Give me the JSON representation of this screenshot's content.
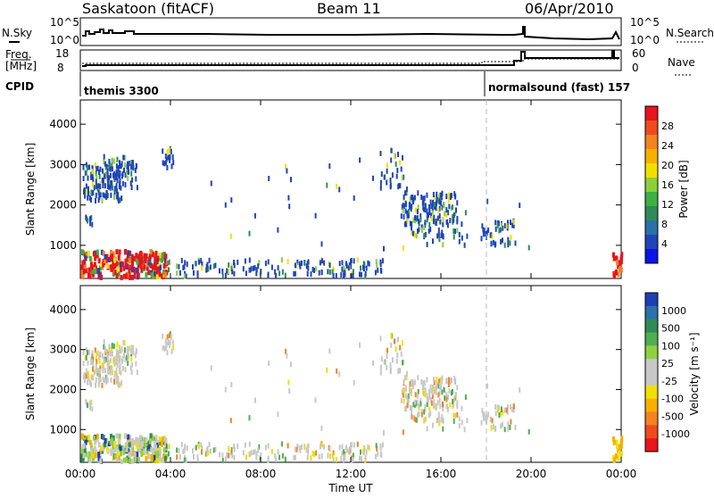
{
  "header": {
    "title": "Saskatoon (fitACF)",
    "beam": "Beam 11",
    "date": "06/Apr/2010"
  },
  "status_panels": {
    "nsky_label": "N.Sky",
    "nsearch_label": "N.Search",
    "nsky_ticks": [
      "10^5",
      "10^0"
    ],
    "nsearch_ticks": [
      "10^5",
      "10^0"
    ],
    "freq_label_1": "Freq.",
    "freq_label_2": "[MHz]",
    "freq_ticks": [
      "18",
      "8"
    ],
    "nave_label": "Nave",
    "nave_ticks": [
      "60",
      "0"
    ],
    "cpid_label": "CPID",
    "cpid_segments": [
      {
        "label": "themis 3300",
        "start_hour": 0
      },
      {
        "label": "normalsound (fast) 157",
        "start_hour": 18.02
      }
    ]
  },
  "chart_data": [
    {
      "type": "heatmap",
      "name": "power",
      "xlabel": "",
      "ylabel": "Slant Range [km]",
      "x_range_hours": [
        0,
        24
      ],
      "x_ticks": [
        "00:00",
        "04:00",
        "08:00",
        "12:00",
        "16:00",
        "20:00",
        "00:00"
      ],
      "ylim": [
        180,
        4600
      ],
      "y_ticks": [
        1000,
        2000,
        3000,
        4000
      ],
      "colorbar": {
        "label": "Power [dB]",
        "ticks": [
          "28",
          "24",
          "20",
          "16",
          "12",
          "8",
          "4"
        ],
        "colors": [
          "#0a14e6",
          "#1f44b8",
          "#2a6fa8",
          "#2e8b57",
          "#3cb043",
          "#8bd03a",
          "#f0e000",
          "#f7b000",
          "#f58220",
          "#ef4a1e",
          "#e8141e"
        ]
      },
      "marker_hour": 18.02
    },
    {
      "type": "heatmap",
      "name": "velocity",
      "xlabel": "Time UT",
      "ylabel": "Slant Range [km]",
      "x_range_hours": [
        0,
        24
      ],
      "x_ticks": [
        "00:00",
        "04:00",
        "08:00",
        "12:00",
        "16:00",
        "20:00",
        "00:00"
      ],
      "ylim": [
        180,
        4600
      ],
      "y_ticks": [
        1000,
        2000,
        3000,
        4000
      ],
      "colorbar": {
        "label": "Velocity [m s⁻¹]",
        "ticks": [
          "1000",
          "500",
          "100",
          "25",
          "-25",
          "-100",
          "-500",
          "-1000"
        ],
        "colors": [
          "#1c3fb5",
          "#2a72a8",
          "#2e8b57",
          "#4caf50",
          "#90d040",
          "#c8c8c8",
          "#c8c8c8",
          "#f0e000",
          "#f7b000",
          "#f58220",
          "#ef4a1e",
          "#e8141e"
        ]
      },
      "marker_hour": 18.02
    }
  ]
}
